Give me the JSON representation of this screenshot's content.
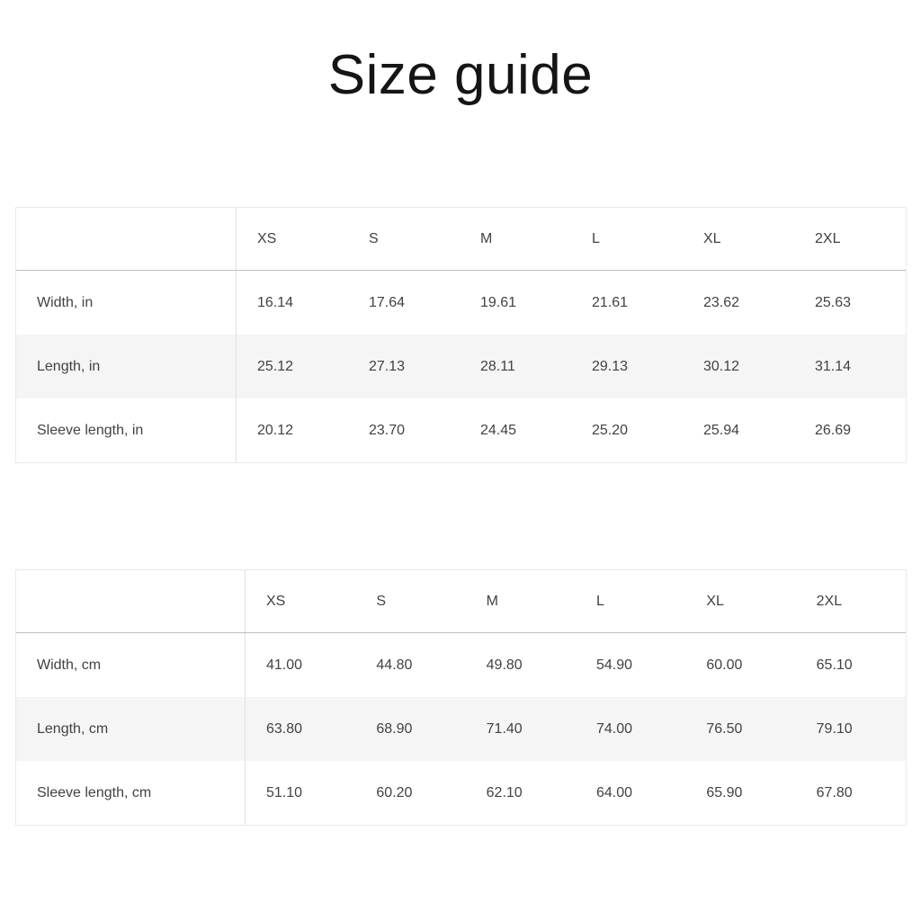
{
  "page": {
    "title": "Size guide"
  },
  "colors": {
    "stripe_row": "#f5f5f5",
    "table_border": "#e9e9e9",
    "column_divider": "#e0e0e0",
    "header_separator": "#bdbdbd",
    "text": "#424242",
    "title_text": "#151515"
  },
  "tables": [
    {
      "name": "inches",
      "columns": [
        "XS",
        "S",
        "M",
        "L",
        "XL",
        "2XL"
      ],
      "rows": [
        {
          "label": "Width, in",
          "values": [
            "16.14",
            "17.64",
            "19.61",
            "21.61",
            "23.62",
            "25.63"
          ]
        },
        {
          "label": "Length, in",
          "values": [
            "25.12",
            "27.13",
            "28.11",
            "29.13",
            "30.12",
            "31.14"
          ]
        },
        {
          "label": "Sleeve length, in",
          "values": [
            "20.12",
            "23.70",
            "24.45",
            "25.20",
            "25.94",
            "26.69"
          ]
        }
      ]
    },
    {
      "name": "centimeters",
      "columns": [
        "XS",
        "S",
        "M",
        "L",
        "XL",
        "2XL"
      ],
      "rows": [
        {
          "label": "Width, cm",
          "values": [
            "41.00",
            "44.80",
            "49.80",
            "54.90",
            "60.00",
            "65.10"
          ]
        },
        {
          "label": "Length, cm",
          "values": [
            "63.80",
            "68.90",
            "71.40",
            "74.00",
            "76.50",
            "79.10"
          ]
        },
        {
          "label": "Sleeve length, cm",
          "values": [
            "51.10",
            "60.20",
            "62.10",
            "64.00",
            "65.90",
            "67.80"
          ]
        }
      ]
    }
  ]
}
